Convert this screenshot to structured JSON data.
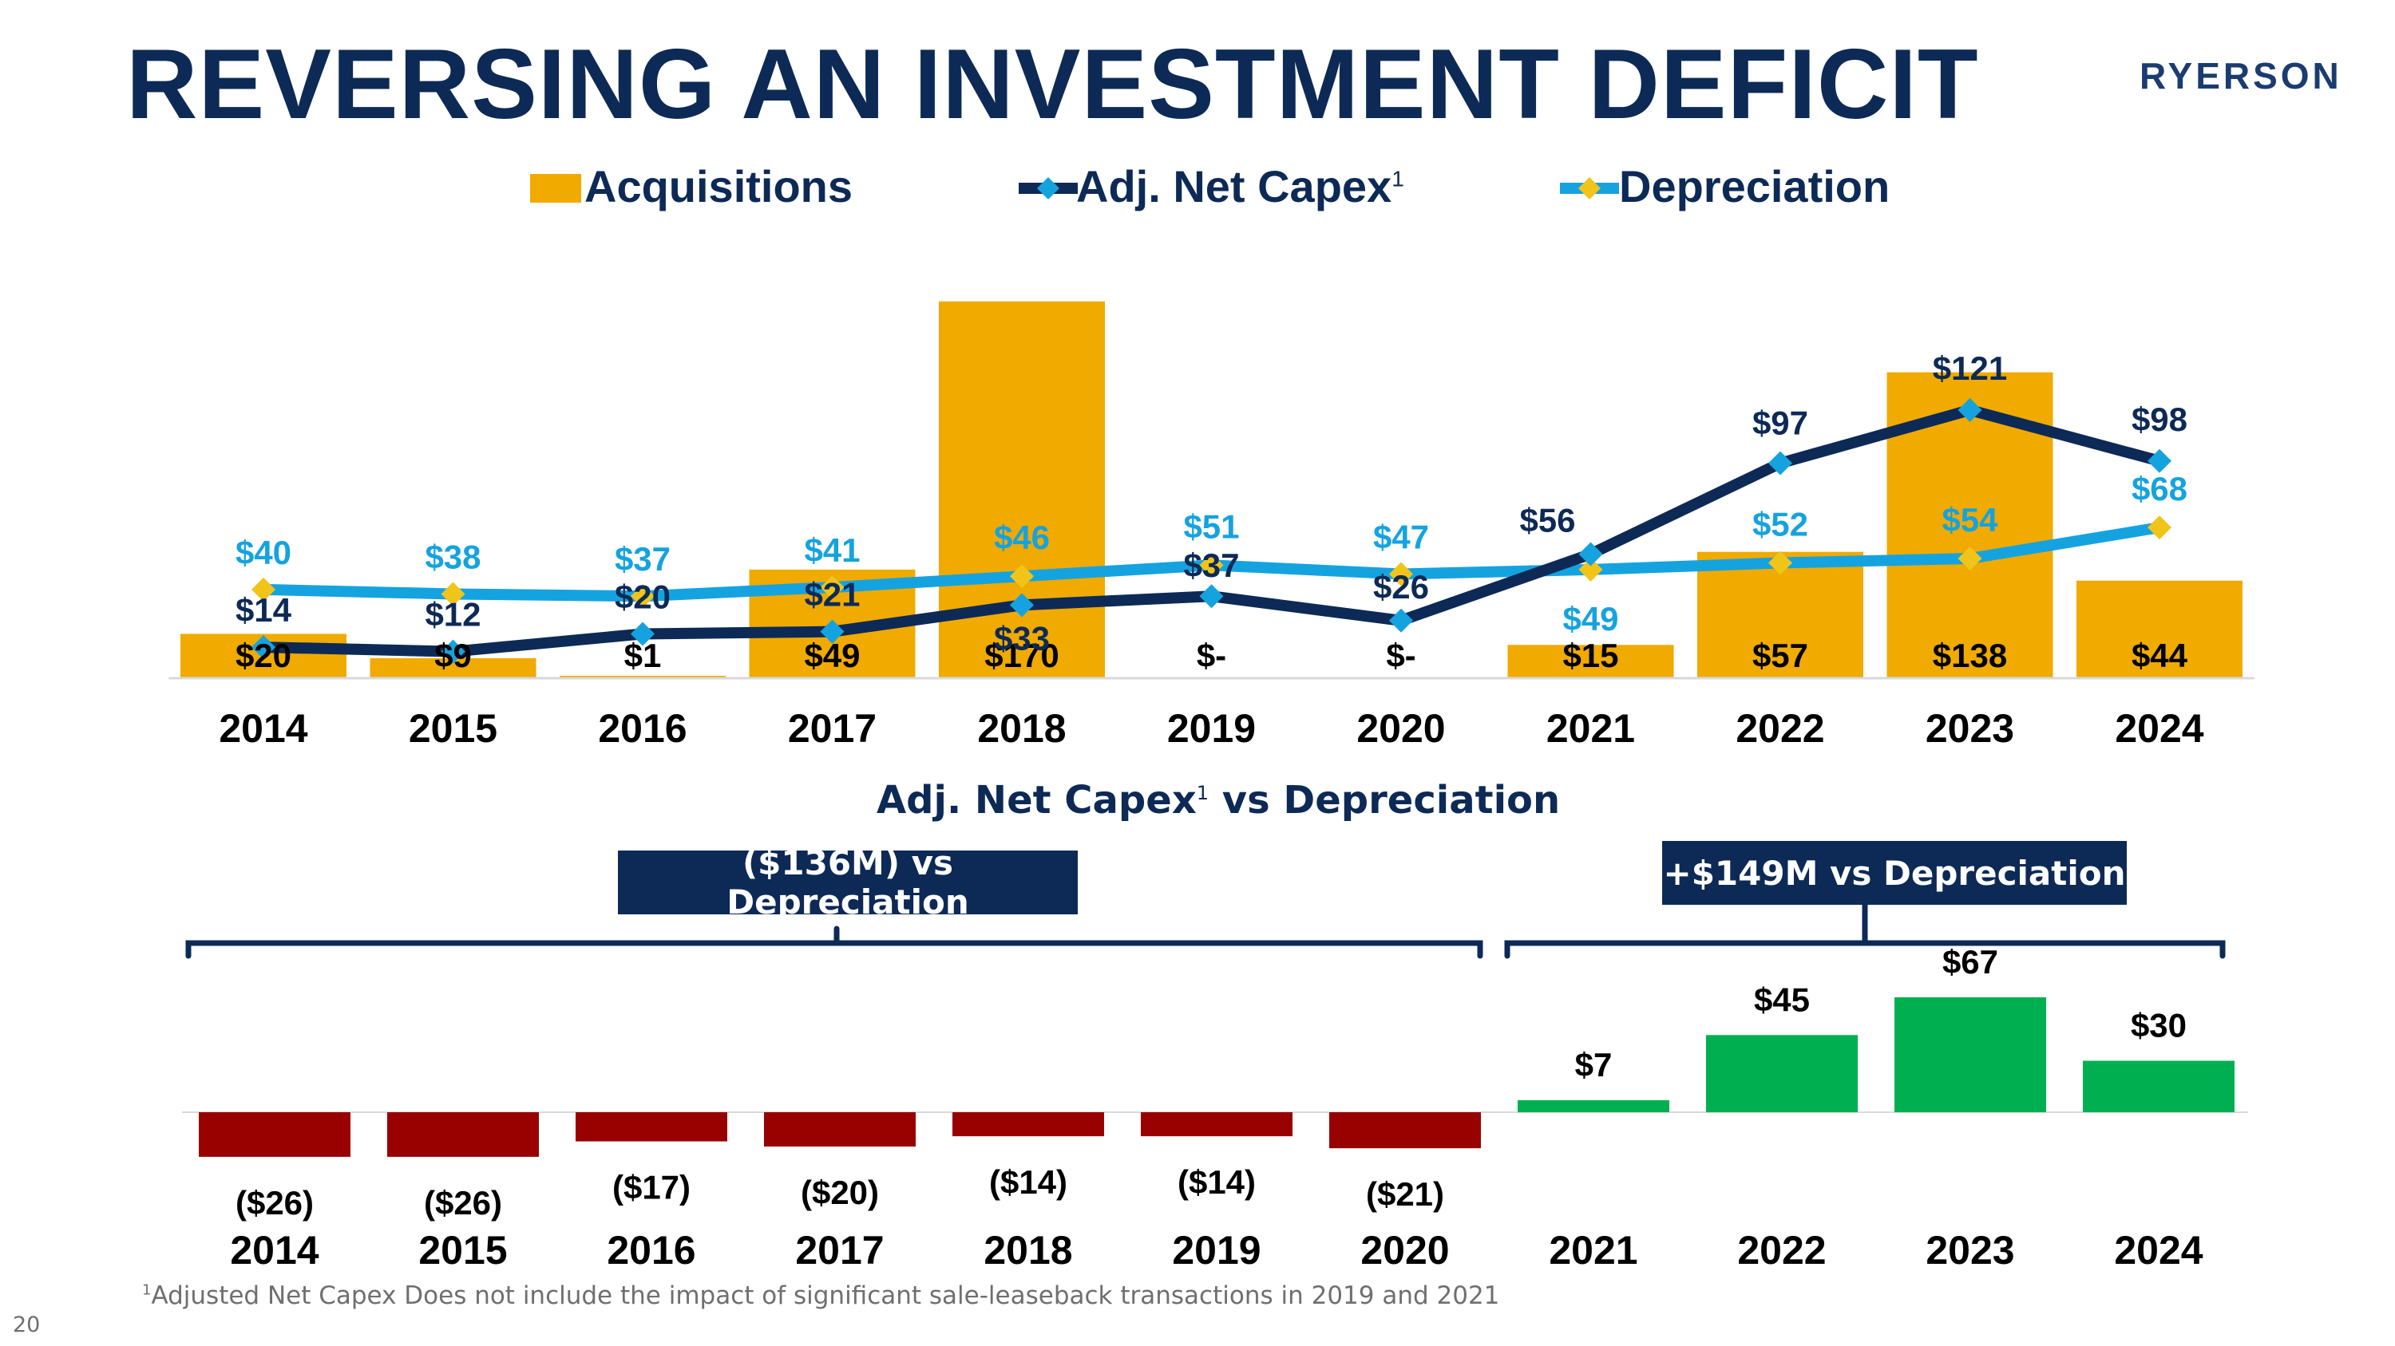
{
  "page": {
    "title": "REVERSING AN INVESTMENT DEFICIT",
    "logo_text": "RYERSON",
    "page_number": "20",
    "footnote_mark": "1",
    "footnote_text": "Adjusted Net Capex Does not include the impact of significant sale-leaseback transactions in 2019 and 2021"
  },
  "colors": {
    "title": "#0d2a56",
    "acquisitions": "#f0aa00",
    "capex_line": "#0d2a56",
    "capex_marker": "#15a3e0",
    "depreciation_line": "#15a3e0",
    "depreciation_marker": "#f0c419",
    "negative_bar": "#990000",
    "positive_bar": "#00b050",
    "callout_bg": "#0d2a56"
  },
  "chart_data": [
    {
      "type": "bar",
      "title": "",
      "legend": {
        "acquisitions": "Acquisitions",
        "capex": "Adj. Net Capex",
        "capex_sup": "1",
        "depreciation": "Depreciation"
      },
      "categories": [
        "2014",
        "2015",
        "2016",
        "2017",
        "2018",
        "2019",
        "2020",
        "2021",
        "2022",
        "2023",
        "2024"
      ],
      "series": [
        {
          "name": "Acquisitions",
          "type": "bar",
          "values": [
            20,
            9,
            1,
            49,
            170,
            0,
            0,
            15,
            57,
            138,
            44
          ],
          "labels": [
            "$20",
            "$9",
            "$1",
            "$49",
            "$170",
            "$-",
            "$-",
            "$15",
            "$57",
            "$138",
            "$44"
          ]
        },
        {
          "name": "Adj. Net Capex",
          "type": "line",
          "values": [
            14,
            12,
            20,
            21,
            33,
            37,
            26,
            56,
            97,
            121,
            98
          ],
          "labels": [
            "$14",
            "$12",
            "$20",
            "$21",
            "$33",
            "$37",
            "$26",
            "$56",
            "$97",
            "$121",
            "$98"
          ]
        },
        {
          "name": "Depreciation",
          "type": "line",
          "values": [
            40,
            38,
            37,
            41,
            46,
            51,
            47,
            49,
            52,
            54,
            68
          ],
          "labels": [
            "$40",
            "$38",
            "$37",
            "$41",
            "$46",
            "$51",
            "$47",
            "$49",
            "$52",
            "$54",
            "$68"
          ]
        }
      ],
      "ylim": [
        0,
        180
      ],
      "grid": false
    },
    {
      "type": "bar",
      "title": "Adj. Net Capex vs Depreciation",
      "title_main": "Adj. Net Capex",
      "title_sup": "1",
      "title_rest": "vs Depreciation",
      "categories": [
        "2014",
        "2015",
        "2016",
        "2017",
        "2018",
        "2019",
        "2020",
        "2021",
        "2022",
        "2023",
        "2024"
      ],
      "values": [
        -26,
        -26,
        -17,
        -20,
        -14,
        -14,
        -21,
        7,
        45,
        67,
        30
      ],
      "labels": [
        "($26)",
        "($26)",
        "($17)",
        "($20)",
        "($14)",
        "($14)",
        "($21)",
        "$7",
        "$45",
        "$67",
        "$30"
      ],
      "ylim": [
        -30,
        70
      ],
      "annotations": [
        {
          "text": "($136M) vs Depreciation",
          "range": [
            "2014",
            "2020"
          ]
        },
        {
          "text": "+$149M vs Depreciation",
          "range": [
            "2021",
            "2024"
          ]
        }
      ]
    }
  ]
}
